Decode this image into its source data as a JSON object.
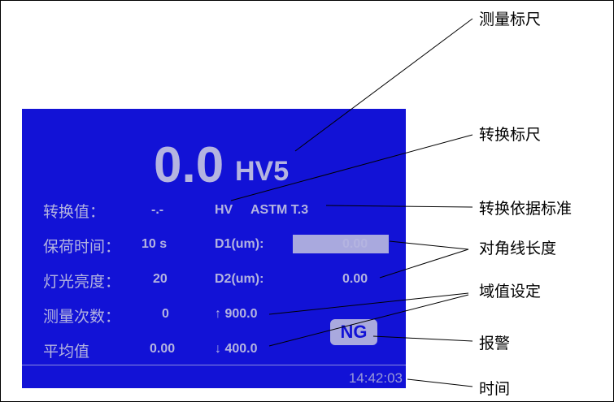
{
  "display": {
    "value": "0.0",
    "scale": "HV5",
    "rows": [
      {
        "label": "转换值：",
        "value": "-.-"
      },
      {
        "label": "保荷时间：",
        "value": "10 s"
      },
      {
        "label": "灯光亮度：",
        "value": "20"
      },
      {
        "label": "测量次数：",
        "value": "0"
      },
      {
        "label": "平均值",
        "value": "0.00"
      }
    ],
    "conv_scale": "HV",
    "conv_standard": "ASTM T.3",
    "d1_label": "D1(um):",
    "d1_value": "0.00",
    "d2_label": "D2(um):",
    "d2_value": "0.00",
    "upper_limit": "↑ 900.0",
    "lower_limit": "↓ 400.0",
    "alarm": "NG",
    "time": "14:42:03"
  },
  "annotations": {
    "scale": "测量标尺",
    "conv_scale": "转换标尺",
    "standard": "转换依据标准",
    "diagonal": "对角线长度",
    "limits": "域值设定",
    "alarm": "报警",
    "time": "时间"
  },
  "colors": {
    "panel": "#1212d6",
    "text": "#b4b4e0"
  }
}
